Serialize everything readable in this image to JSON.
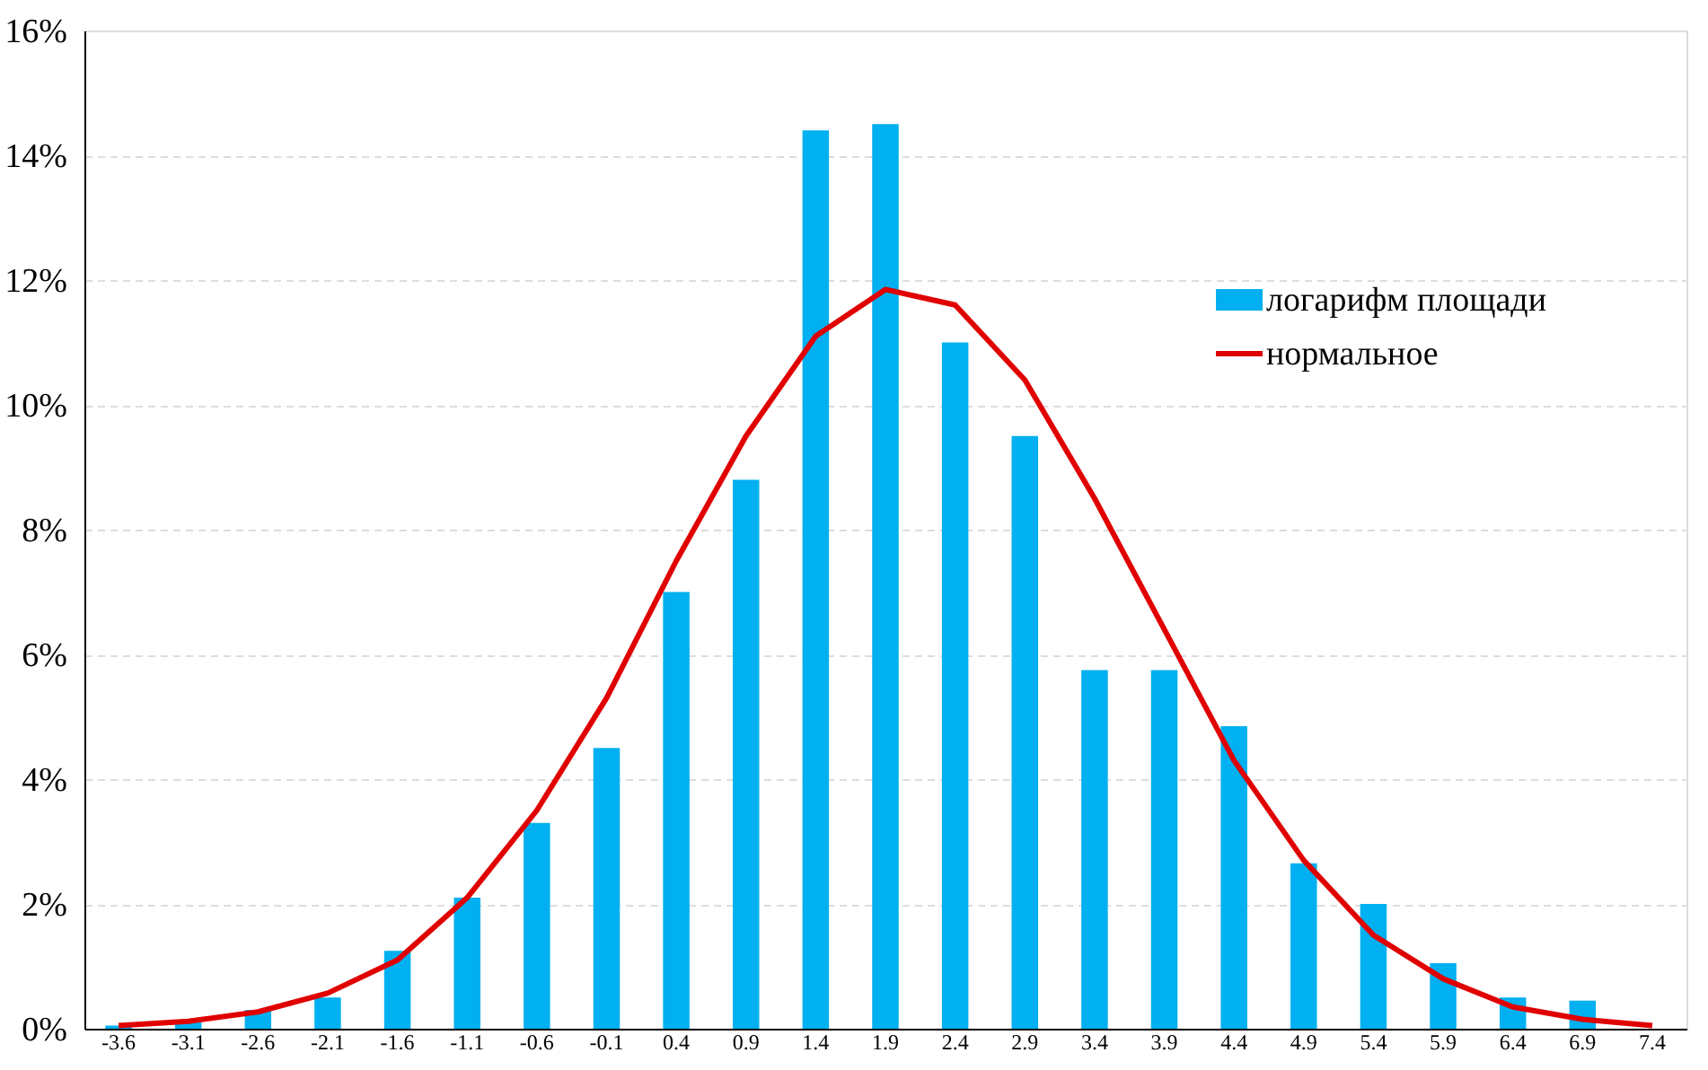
{
  "chart_data": {
    "type": "bar",
    "categories": [
      "-3.6",
      "-3.1",
      "-2.6",
      "-2.1",
      "-1.6",
      "-1.1",
      "-0.6",
      "-0.1",
      "0.4",
      "0.9",
      "1.4",
      "1.9",
      "2.4",
      "2.9",
      "3.4",
      "3.9",
      "4.4",
      "4.9",
      "5.4",
      "5.9",
      "6.4",
      "6.9",
      "7.4"
    ],
    "series": [
      {
        "name": "логарифм площади",
        "color": "#00b0f0",
        "values": [
          0.05,
          0.1,
          0.3,
          0.5,
          1.25,
          2.1,
          3.3,
          4.5,
          7.0,
          8.8,
          14.4,
          14.5,
          11.0,
          9.5,
          5.75,
          5.75,
          4.85,
          2.65,
          2.0,
          1.05,
          0.5,
          0.45,
          0
        ]
      },
      {
        "name": "нормальное",
        "type": "line",
        "color": "#e00000",
        "values": [
          0.05,
          0.12,
          0.27,
          0.57,
          1.1,
          2.1,
          3.5,
          5.3,
          7.5,
          9.5,
          11.1,
          11.85,
          11.6,
          10.4,
          8.5,
          6.4,
          4.3,
          2.7,
          1.5,
          0.8,
          0.35,
          0.15,
          0.05
        ]
      }
    ],
    "ylim": [
      0,
      16
    ],
    "yticks": [
      {
        "value": 0,
        "label": "0%"
      },
      {
        "value": 2,
        "label": "2%"
      },
      {
        "value": 4,
        "label": "4%"
      },
      {
        "value": 6,
        "label": "6%"
      },
      {
        "value": 8,
        "label": "8%"
      },
      {
        "value": 10,
        "label": "10%"
      },
      {
        "value": 12,
        "label": "12%"
      },
      {
        "value": 14,
        "label": "14%"
      },
      {
        "value": 16,
        "label": "16%"
      }
    ],
    "grid": "y",
    "legend": "right",
    "marker": "none",
    "line_style": "solid"
  }
}
